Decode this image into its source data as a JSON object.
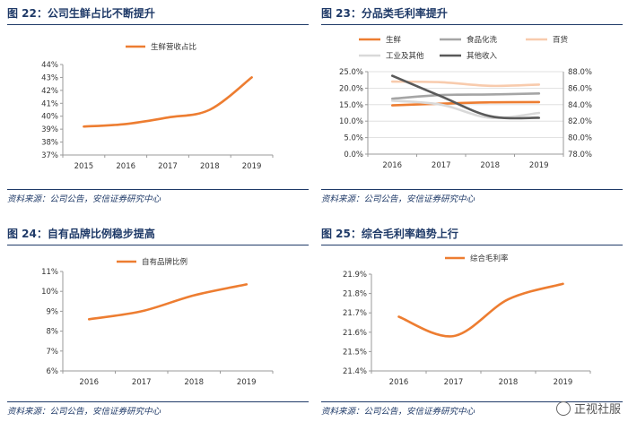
{
  "panels": [
    {
      "title": "图 22：公司生鲜占比不断提升",
      "source": "资料来源：公司公告，安信证券研究中心"
    },
    {
      "title": "图 23：分品类毛利率提升",
      "source": "资料来源：公司公告，安信证券研究中心"
    },
    {
      "title": "图 24：自有品牌比例稳步提高",
      "source": "资料来源：公司公告，安信证券研究中心"
    },
    {
      "title": "图 25：综合毛利率趋势上行",
      "source": "资料来源：公司公告，安信证券研究中心"
    }
  ],
  "watermark": "正视社服",
  "chart_data": [
    {
      "type": "line",
      "title": "图 22：公司生鲜占比不断提升",
      "x": [
        "2015",
        "2016",
        "2017",
        "2018",
        "2019"
      ],
      "series": [
        {
          "name": "生鲜营收占比",
          "values": [
            39.2,
            39.4,
            39.9,
            40.5,
            43.0
          ],
          "color": "#ed7d31"
        }
      ],
      "ylim": [
        37,
        44
      ],
      "yticks": [
        37,
        38,
        39,
        40,
        41,
        42,
        43,
        44
      ],
      "ytick_labels": [
        "37%",
        "38%",
        "39%",
        "40%",
        "41%",
        "42%",
        "43%",
        "44%"
      ],
      "legend": "top-left"
    },
    {
      "type": "line",
      "title": "图 23：分品类毛利率提升",
      "x": [
        "2016",
        "2017",
        "2018",
        "2019"
      ],
      "series": [
        {
          "name": "生鲜",
          "axis": "left",
          "values": [
            14.8,
            15.3,
            15.7,
            15.8
          ],
          "color": "#ed7d31"
        },
        {
          "name": "食品化洗",
          "axis": "left",
          "values": [
            16.8,
            17.9,
            18.1,
            18.4
          ],
          "color": "#a5a5a5"
        },
        {
          "name": "百货",
          "axis": "left",
          "values": [
            22.0,
            21.8,
            20.7,
            21.1
          ],
          "color": "#f8cbad"
        },
        {
          "name": "工业及其他",
          "axis": "left",
          "values": [
            16.2,
            15.0,
            11.0,
            12.5
          ],
          "color": "#d9d9d9"
        },
        {
          "name": "其他收入",
          "axis": "right",
          "values": [
            87.5,
            85.0,
            82.6,
            82.4
          ],
          "color": "#595959"
        }
      ],
      "ylim_left": [
        0,
        25
      ],
      "yticks_left": [
        0,
        5,
        10,
        15,
        20,
        25
      ],
      "ytick_labels_left": [
        "0.0%",
        "5.0%",
        "10.0%",
        "15.0%",
        "20.0%",
        "25.0%"
      ],
      "ylim_right": [
        78,
        88
      ],
      "yticks_right": [
        78,
        80,
        82,
        84,
        86,
        88
      ],
      "ytick_labels_right": [
        "78.0%",
        "80.0%",
        "82.0%",
        "84.0%",
        "86.0%",
        "88.0%"
      ],
      "legend": "top"
    },
    {
      "type": "line",
      "title": "图 24：自有品牌比例稳步提高",
      "x": [
        "2016",
        "2017",
        "2018",
        "2019"
      ],
      "series": [
        {
          "name": "自有品牌比例",
          "values": [
            8.6,
            9.0,
            9.8,
            10.35
          ],
          "color": "#ed7d31"
        }
      ],
      "ylim": [
        6,
        11
      ],
      "yticks": [
        6,
        7,
        8,
        9,
        10,
        11
      ],
      "ytick_labels": [
        "6%",
        "7%",
        "8%",
        "9%",
        "10%",
        "11%"
      ],
      "legend": "top-left"
    },
    {
      "type": "line",
      "title": "图 25：综合毛利率趋势上行",
      "x": [
        "2016",
        "2017",
        "2018",
        "2019"
      ],
      "series": [
        {
          "name": "综合毛利率",
          "values": [
            21.68,
            21.58,
            21.77,
            21.85
          ],
          "color": "#ed7d31"
        }
      ],
      "ylim": [
        21.4,
        21.9
      ],
      "yticks": [
        21.4,
        21.5,
        21.6,
        21.7,
        21.8,
        21.9
      ],
      "ytick_labels": [
        "21.4%",
        "21.5%",
        "21.6%",
        "21.7%",
        "21.8%",
        "21.9%"
      ],
      "legend": "top-left"
    }
  ]
}
